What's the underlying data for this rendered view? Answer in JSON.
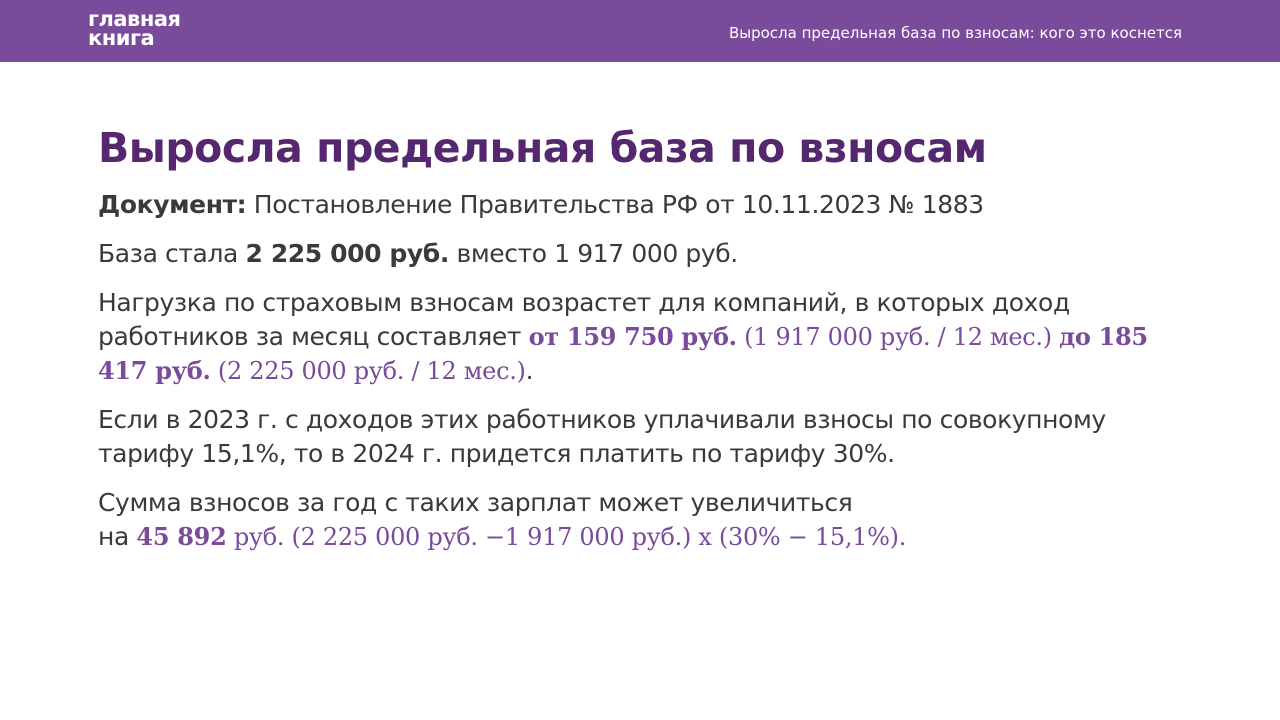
{
  "header": {
    "logo_line1": "главная",
    "logo_line2": "книга",
    "title": "Выросла предельная база по взносам: кого это коснется"
  },
  "slide": {
    "title": "Выросла предельная база по взносам",
    "document": {
      "label": "Документ:",
      "text": " Постановление Правительства РФ от 10.11.2023 № 1883"
    },
    "base": {
      "prefix": "База стала ",
      "new_value": "2 225 000 руб.",
      "suffix": " вместо 1 917 000 руб."
    },
    "load": {
      "text": "Нагрузка по страховым взносам возрастет для компаний, в которых доход работников за месяц составляет ",
      "from_value": "от 159 750 руб.",
      "from_calc": " (1 917 000 руб. / 12 мес.) ",
      "to_value": "до 185 417 руб.",
      "to_calc": " (2 225 000 руб. / 12 мес.)",
      "end": "."
    },
    "tariff": {
      "text": "Если в 2023 г. с доходов этих работников уплачивали взносы по совокупному тарифу 15,1%, то в 2024 г. придется платить по тарифу 30%."
    },
    "sum": {
      "text": "Сумма взносов за год с таких зарплат может увеличиться",
      "prefix": "на ",
      "value": "45 892",
      "calc": " руб. (2 225 000 руб.  −1 917 000 руб.) х (30%  − 15,1%)."
    }
  }
}
